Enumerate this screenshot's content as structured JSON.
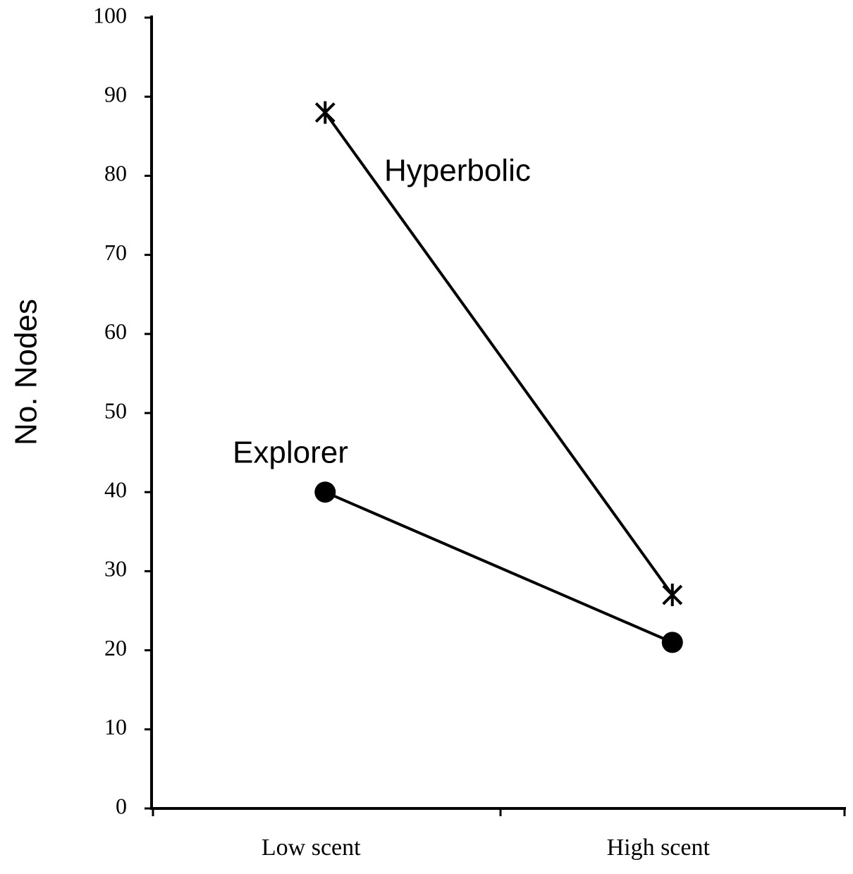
{
  "chart_data": {
    "type": "line",
    "categories": [
      "Low scent",
      "High scent"
    ],
    "series": [
      {
        "name": "Hyperbolic",
        "color": "#000000",
        "marker": "star",
        "values": [
          88,
          27
        ]
      },
      {
        "name": "Explorer",
        "color": "#000000",
        "marker": "circle",
        "values": [
          40,
          21
        ]
      }
    ],
    "y_label": "No. Nodes",
    "ylim": [
      0,
      100
    ],
    "yticks": [
      0,
      10,
      20,
      30,
      40,
      50,
      60,
      70,
      80,
      90,
      100
    ],
    "grid": false
  }
}
